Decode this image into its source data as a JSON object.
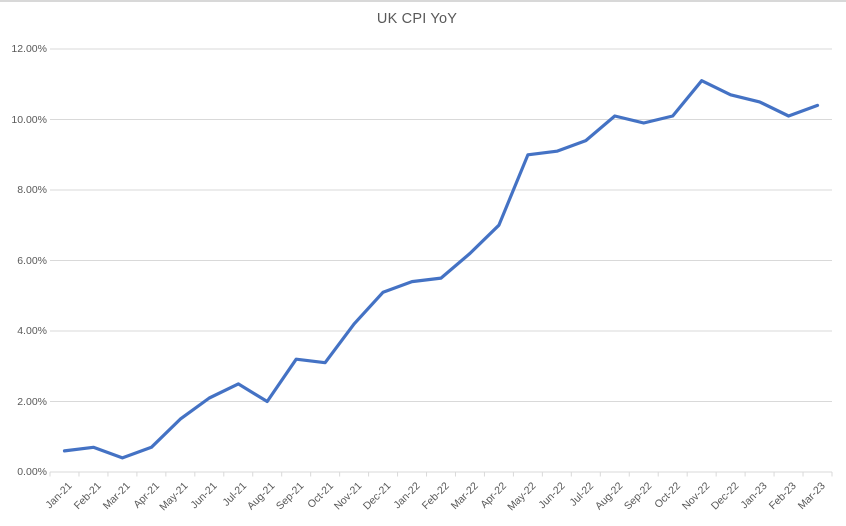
{
  "window": {
    "background_color": "#FFFFFF",
    "top_border_color": "#D8D8D8"
  },
  "chart_data": {
    "type": "line",
    "title": "UK CPI YoY",
    "categories": [
      "Jan-21",
      "Feb-21",
      "Mar-21",
      "Apr-21",
      "May-21",
      "Jun-21",
      "Jul-21",
      "Aug-21",
      "Sep-21",
      "Oct-21",
      "Nov-21",
      "Dec-21",
      "Jan-22",
      "Feb-22",
      "Mar-22",
      "Apr-22",
      "May-22",
      "Jun-22",
      "Jul-22",
      "Aug-22",
      "Sep-22",
      "Oct-22",
      "Nov-22",
      "Dec-22",
      "Jan-23",
      "Feb-23",
      "Mar-23"
    ],
    "series": [
      {
        "name": "UK CPI YoY",
        "values": [
          0.6,
          0.7,
          0.4,
          0.7,
          1.5,
          2.1,
          2.5,
          2.0,
          3.2,
          3.1,
          4.2,
          5.1,
          5.4,
          5.5,
          6.2,
          7.0,
          9.0,
          9.1,
          9.4,
          10.1,
          9.9,
          10.1,
          11.1,
          10.7,
          10.5,
          10.1,
          10.4
        ],
        "color": "#4472C4"
      }
    ],
    "xlabel": "",
    "ylabel": "",
    "ylim": [
      0,
      12
    ],
    "y_tick_interval": 2,
    "y_tick_labels": [
      "0.00%",
      "2.00%",
      "4.00%",
      "6.00%",
      "8.00%",
      "10.00%",
      "12.00%"
    ],
    "x_label_rotation_deg": -45,
    "grid": "horizontal",
    "gridline_color": "#D9D9D9",
    "axis_line_color": "#D9D9D9",
    "tick_color": "#D9D9D9",
    "axis_text_color": "#595959",
    "title_color": "#595959",
    "legend_position": "none",
    "markers": "none"
  }
}
